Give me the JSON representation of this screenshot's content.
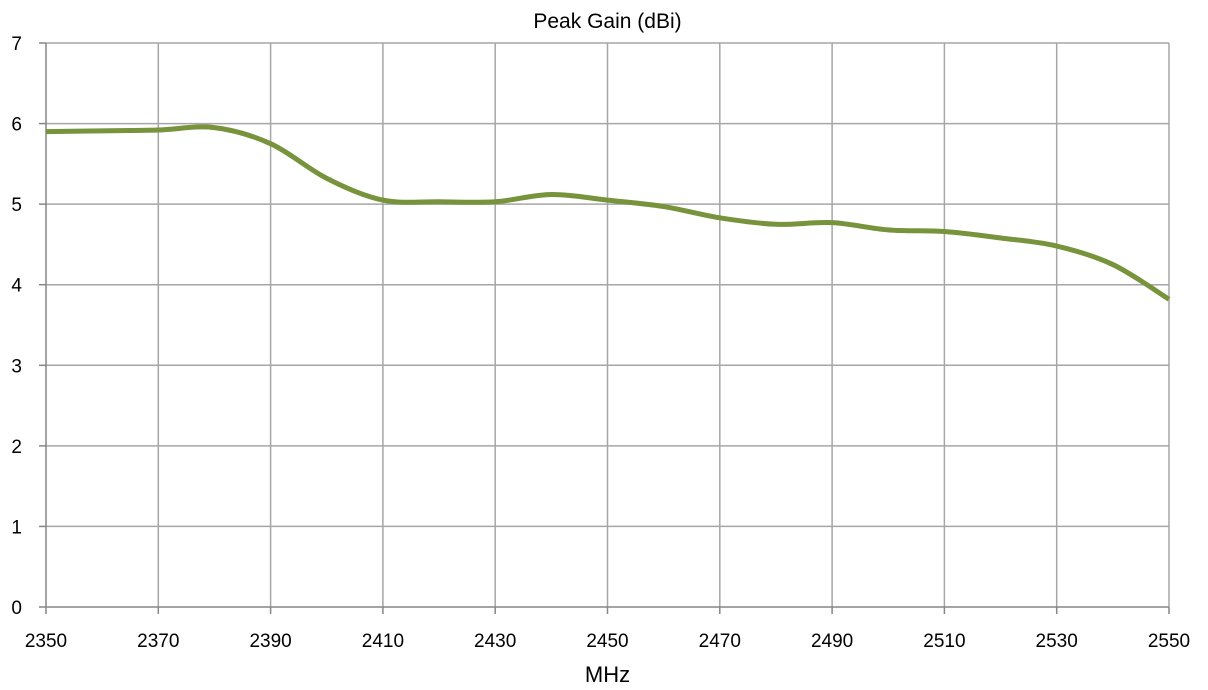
{
  "chart_data": {
    "type": "line",
    "title": "Peak Gain  (dBi)",
    "xlabel": "MHz",
    "ylabel": "",
    "xlim": [
      2350,
      2550
    ],
    "ylim": [
      0,
      7
    ],
    "x_ticks": [
      "2350",
      "2370",
      "2390",
      "2410",
      "2430",
      "2450",
      "2470",
      "2490",
      "2510",
      "2530",
      "2550"
    ],
    "y_ticks": [
      "0",
      "1",
      "2",
      "3",
      "4",
      "5",
      "6",
      "7"
    ],
    "grid": true,
    "legend": "none",
    "series_color": "#77933C",
    "series": [
      {
        "x": [
          2350,
          2360,
          2370,
          2380,
          2390,
          2400,
          2410,
          2420,
          2430,
          2440,
          2450,
          2460,
          2470,
          2480,
          2490,
          2500,
          2510,
          2520,
          2530,
          2540,
          2550
        ],
        "values": [
          5.9,
          5.91,
          5.92,
          5.95,
          5.75,
          5.32,
          5.05,
          5.03,
          5.03,
          5.12,
          5.05,
          4.97,
          4.83,
          4.75,
          4.77,
          4.68,
          4.66,
          4.58,
          4.48,
          4.25,
          3.82
        ]
      }
    ]
  }
}
